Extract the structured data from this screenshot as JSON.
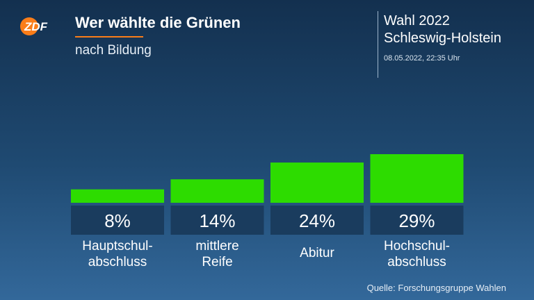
{
  "logo": {
    "text": "ZDF",
    "colors": {
      "circle": "#fa7d19",
      "text": "#ffffff"
    }
  },
  "header": {
    "title": "Wer wählte die Grünen",
    "subtitle": "nach Bildung",
    "underline_color": "#fa7d19"
  },
  "election": {
    "line1": "Wahl 2022",
    "line2": "Schleswig-Holstein",
    "timestamp": "08.05.2022, 22:35 Uhr"
  },
  "source": "Quelle: Forschungsgruppe Wahlen",
  "chart_data": {
    "type": "bar",
    "categories": [
      [
        "Hauptschul-",
        "abschluss"
      ],
      [
        "mittlere",
        "Reife"
      ],
      [
        "Abitur"
      ],
      [
        "Hochschul-",
        "abschluss"
      ]
    ],
    "values": [
      8,
      14,
      24,
      29
    ],
    "value_labels": [
      "8%",
      "14%",
      "24%",
      "29%"
    ],
    "title": "",
    "xlabel": "",
    "ylabel": "",
    "ylim": [
      0,
      29
    ],
    "grid": false,
    "bar_color": "#2ddc00",
    "label_box_color": "#1a3c5e"
  }
}
